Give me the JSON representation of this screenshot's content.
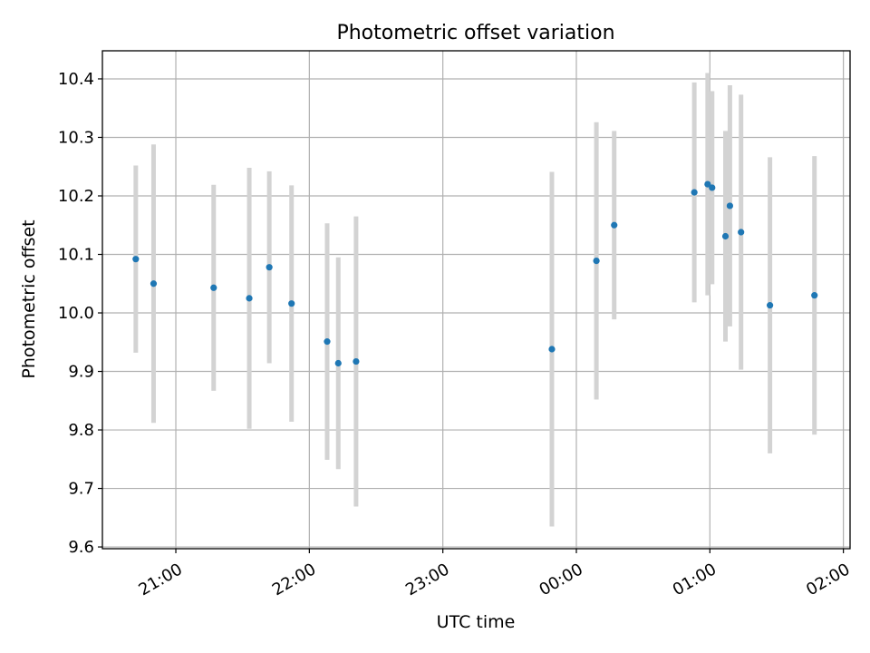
{
  "chart_data": {
    "type": "scatter",
    "title": "Photometric offset variation",
    "xlabel": "UTC time",
    "ylabel": "Photometric offset",
    "x_tick_labels": [
      "21:00",
      "22:00",
      "23:00",
      "00:00",
      "01:00",
      "02:00"
    ],
    "x_ticks": [
      "21:00",
      "22:00",
      "23:00",
      "00:00",
      "01:00",
      "02:00"
    ],
    "y_ticks": [
      9.6,
      9.7,
      9.8,
      9.9,
      10.0,
      10.1,
      10.2,
      10.3,
      10.4
    ],
    "y_tick_labels": [
      "9.6",
      "9.7",
      "9.8",
      "9.9",
      "10.0",
      "10.1",
      "10.2",
      "10.3",
      "10.4"
    ],
    "xlim": [
      "20:27",
      "02:03"
    ],
    "ylim": [
      9.597,
      10.448
    ],
    "grid": true,
    "colors": {
      "point": "#1f77b4",
      "errorbar": "#d3d3d3",
      "grid": "#b0b0b0"
    },
    "points": [
      {
        "x": "20:42",
        "y": 10.092,
        "err": 0.16
      },
      {
        "x": "20:50",
        "y": 10.05,
        "err": 0.238
      },
      {
        "x": "21:17",
        "y": 10.043,
        "err": 0.176
      },
      {
        "x": "21:33",
        "y": 10.025,
        "err": 0.223
      },
      {
        "x": "21:42",
        "y": 10.078,
        "err": 0.164
      },
      {
        "x": "21:52",
        "y": 10.016,
        "err": 0.202
      },
      {
        "x": "22:08",
        "y": 9.951,
        "err": 0.202
      },
      {
        "x": "22:13",
        "y": 9.914,
        "err": 0.181
      },
      {
        "x": "22:21",
        "y": 9.917,
        "err": 0.248
      },
      {
        "x": "23:49",
        "y": 9.938,
        "err": 0.303
      },
      {
        "x": "00:09",
        "y": 10.089,
        "err": 0.237
      },
      {
        "x": "00:17",
        "y": 10.15,
        "err": 0.161
      },
      {
        "x": "00:53",
        "y": 10.206,
        "err": 0.188
      },
      {
        "x": "00:59",
        "y": 10.22,
        "err": 0.19
      },
      {
        "x": "01:01",
        "y": 10.214,
        "err": 0.165
      },
      {
        "x": "01:07",
        "y": 10.131,
        "err": 0.18
      },
      {
        "x": "01:09",
        "y": 10.183,
        "err": 0.206
      },
      {
        "x": "01:14",
        "y": 10.138,
        "err": 0.235
      },
      {
        "x": "01:27",
        "y": 10.013,
        "err": 0.253
      },
      {
        "x": "01:47",
        "y": 10.03,
        "err": 0.238
      }
    ]
  }
}
